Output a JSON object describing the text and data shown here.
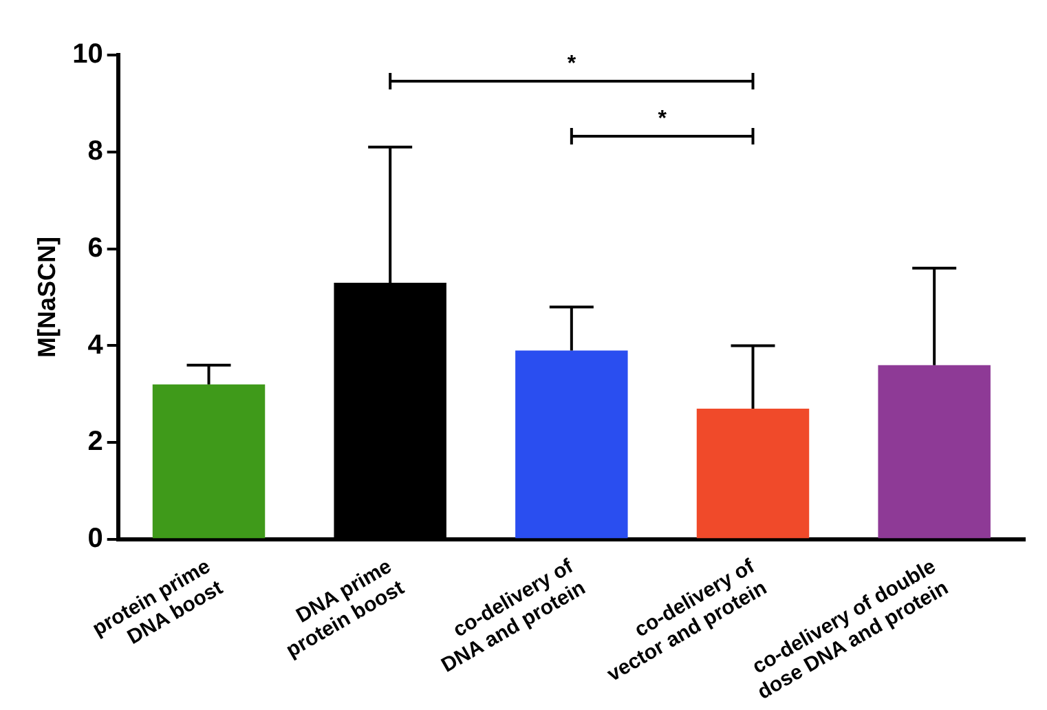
{
  "chart_data": {
    "type": "bar",
    "ylabel": "M[NaSCN]",
    "categories": [
      "protein prime\nDNA boost",
      "DNA prime\nprotein boost",
      "co-delivery of\nDNA and protein",
      "co-delivery of\nvector and protein",
      "co-delivery of double\ndose DNA and protein"
    ],
    "values": [
      3.2,
      5.3,
      3.9,
      2.7,
      3.6
    ],
    "colors": [
      "#3f9a1a",
      "#000000",
      "#2a4ef0",
      "#f04a2a",
      "#8e3a96"
    ],
    "errors": [
      [
        3.2,
        3.6
      ],
      [
        5.3,
        8.1
      ],
      [
        3.9,
        4.8
      ],
      [
        2.7,
        4.0
      ],
      [
        3.6,
        5.6
      ]
    ],
    "ylim": [
      0,
      10
    ],
    "yticks": [
      0,
      2,
      4,
      6,
      8,
      10
    ],
    "grid": false,
    "legend": false,
    "annotations": [
      "*",
      "*"
    ]
  }
}
